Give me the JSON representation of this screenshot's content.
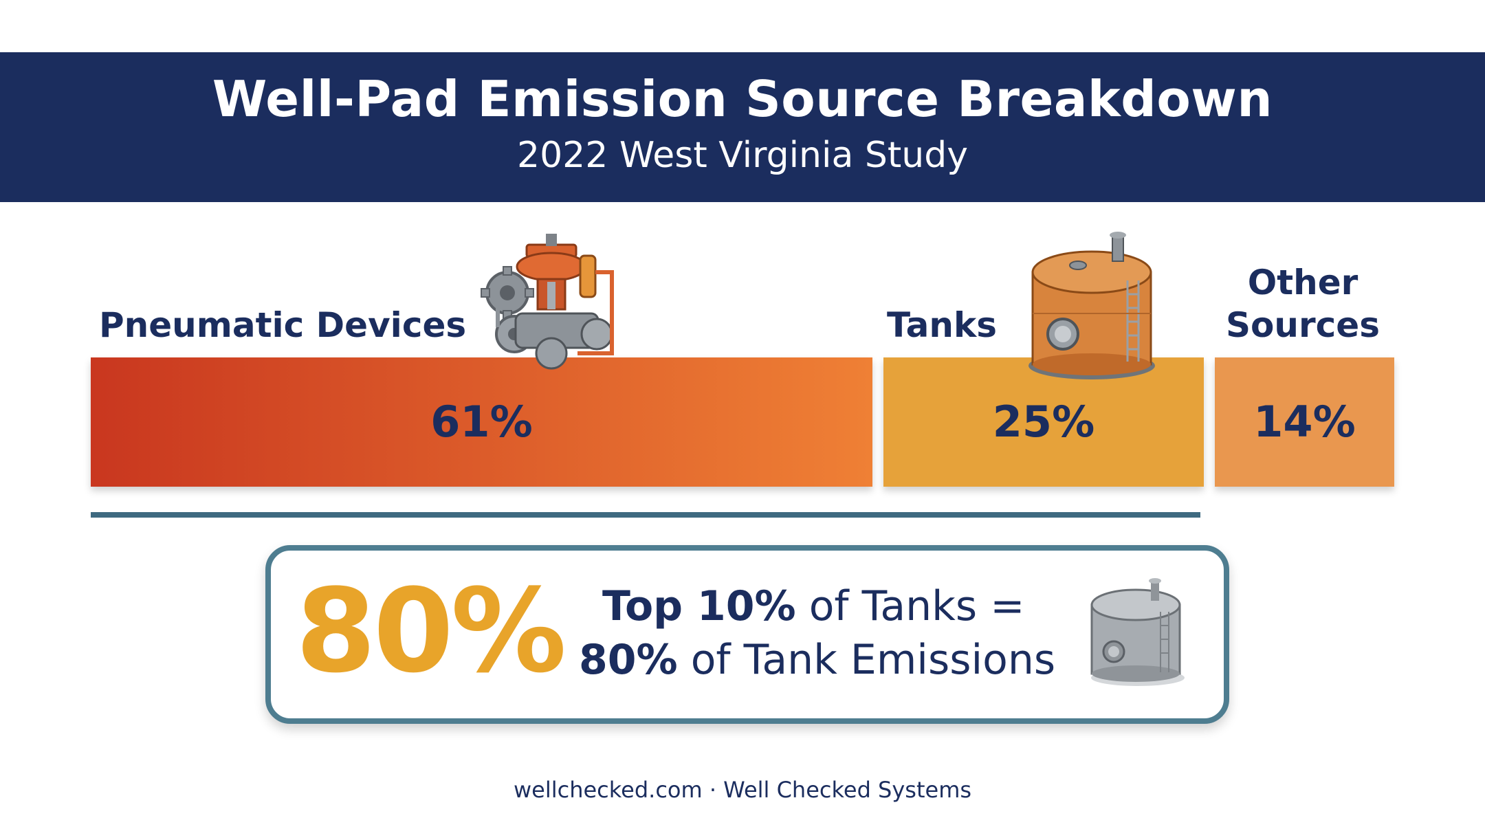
{
  "header": {
    "title": "Well-Pad Emission Source Breakdown",
    "subtitle": "2022 West Virginia Study"
  },
  "chart_data": {
    "type": "bar",
    "orientation": "horizontal-stacked",
    "categories": [
      "Pneumatic Devices",
      "Tanks",
      "Other Sources"
    ],
    "values": [
      61,
      25,
      14
    ],
    "value_labels": [
      "61%",
      "25%",
      "14%"
    ],
    "unit": "%",
    "colors": [
      "#e4622b",
      "#e8a634",
      "#e9974f"
    ]
  },
  "labels": {
    "pneumatic": "Pneumatic Devices",
    "tanks": "Tanks",
    "other_line1": "Other",
    "other_line2": "Sources"
  },
  "callout": {
    "big_stat": "80%",
    "line1_bold": "Top 10%",
    "line1_rest": " of Tanks =",
    "line2_bold": "80%",
    "line2_rest": " of Tank Emissions"
  },
  "icons": {
    "pneumatic": "pneumatic-valve-icon",
    "tank": "storage-tank-icon",
    "callout_tank": "gray-tank-icon"
  },
  "footer": {
    "text": "wellchecked.com · Well Checked Systems"
  },
  "colors": {
    "navy": "#1b2d5e",
    "accent_gold": "#e8a42a",
    "divider": "#3e6a80"
  }
}
